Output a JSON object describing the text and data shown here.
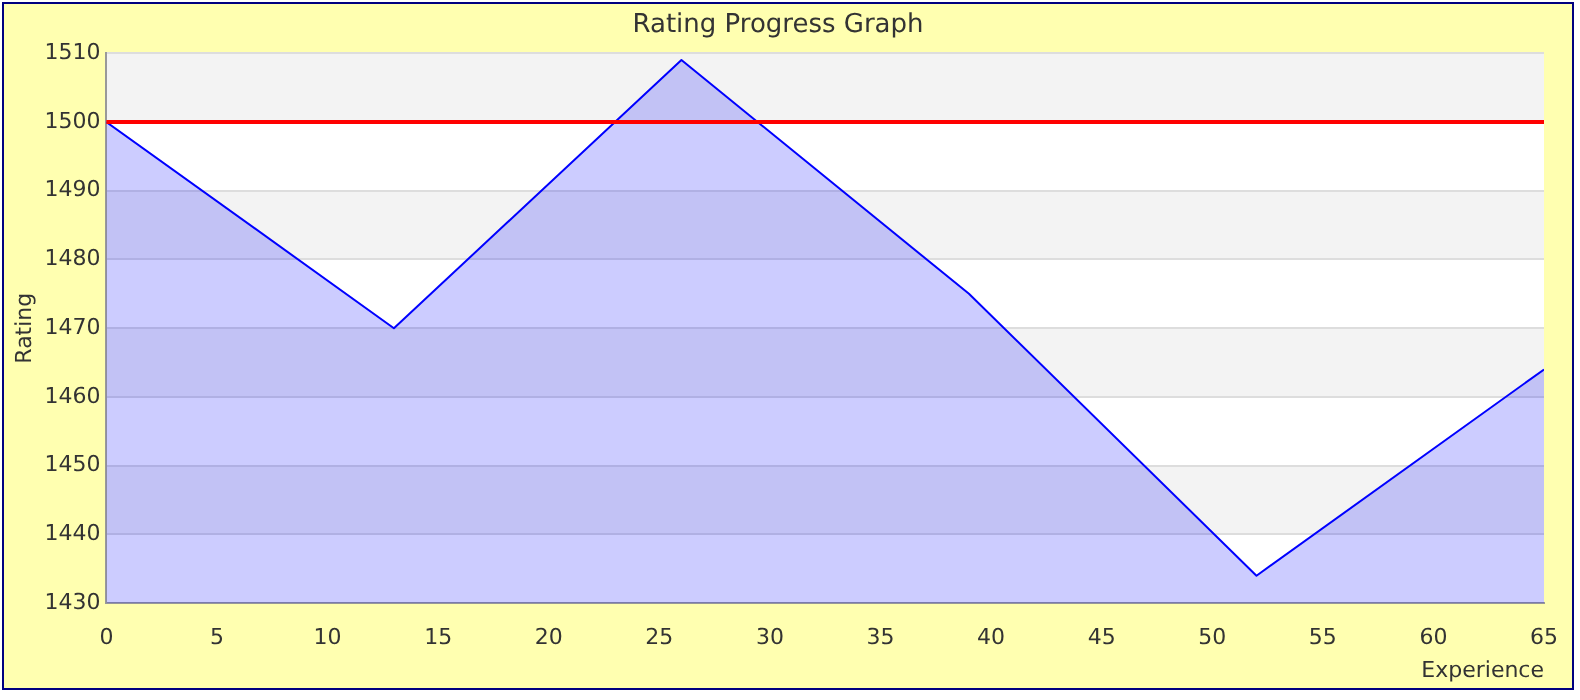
{
  "chart_data": {
    "type": "area",
    "title": "Rating Progress Graph",
    "xlabel": "Experience",
    "ylabel": "Rating",
    "x": [
      0,
      13,
      26,
      39,
      52,
      65
    ],
    "series": [
      {
        "color": "#0000ff",
        "values": [
          1500,
          1470,
          1509,
          1475,
          1434,
          1464
        ]
      }
    ],
    "xlim": [
      0,
      65
    ],
    "xticks": [
      0,
      5,
      10,
      15,
      20,
      25,
      30,
      35,
      40,
      45,
      50,
      55,
      60,
      65
    ],
    "ylim": [
      1430,
      1510
    ],
    "yticks": [
      1430,
      1440,
      1450,
      1460,
      1470,
      1480,
      1490,
      1500,
      1510
    ],
    "ref_lines": [
      {
        "axis": "y",
        "value": 1500,
        "color": "#ff0000"
      }
    ],
    "grid": "y",
    "legend": false,
    "marker": "none"
  }
}
